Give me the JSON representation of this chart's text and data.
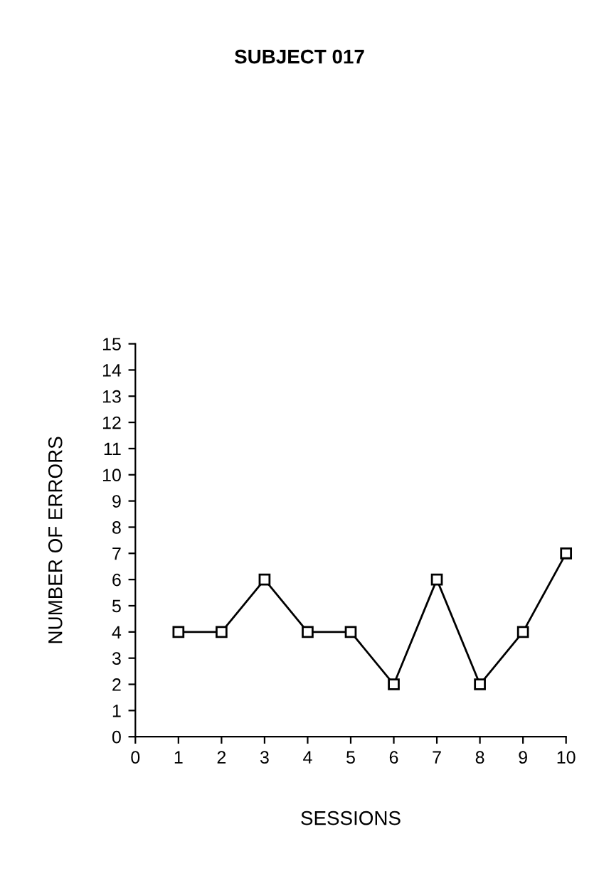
{
  "chart_data": {
    "type": "line",
    "title": "SUBJECT 017",
    "xlabel": "SESSIONS",
    "ylabel": "NUMBER OF ERRORS",
    "x": [
      1,
      2,
      3,
      4,
      5,
      6,
      7,
      8,
      9,
      10
    ],
    "series": [
      {
        "color": "#000000",
        "values": [
          4,
          4,
          6,
          4,
          4,
          2,
          6,
          2,
          4,
          7
        ]
      }
    ],
    "xlim": [
      0,
      10
    ],
    "xticks": [
      0,
      1,
      2,
      3,
      4,
      5,
      6,
      7,
      8,
      9,
      10
    ],
    "ylim": [
      0,
      15
    ],
    "yticks": [
      0,
      1,
      2,
      3,
      4,
      5,
      6,
      7,
      8,
      9,
      10,
      11,
      12,
      13,
      14,
      15
    ],
    "marker": "square",
    "line_style": "solid",
    "grid": false,
    "legend": false
  }
}
